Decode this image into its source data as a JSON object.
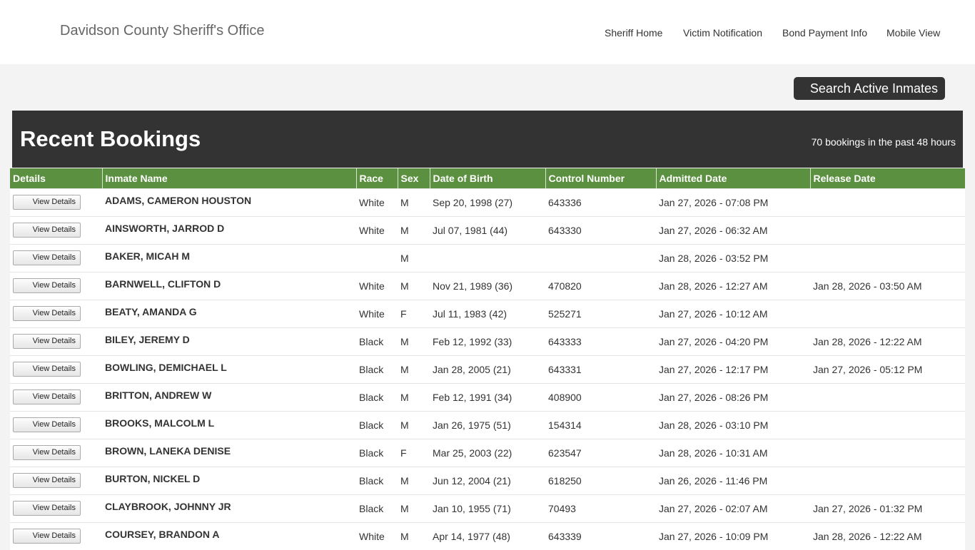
{
  "header": {
    "brand": "Davidson County Sheriff's Office",
    "nav": [
      "Sheriff Home",
      "Victim Notification",
      "Bond Payment Info",
      "Mobile View"
    ]
  },
  "search_button": "Search Active Inmates",
  "panel": {
    "title": "Recent Bookings",
    "count_text": "70 bookings in the past 48 hours"
  },
  "table": {
    "columns": [
      "Details",
      "Inmate Name",
      "Race",
      "Sex",
      "Date of Birth",
      "Control Number",
      "Admitted Date",
      "Release Date"
    ],
    "button_label": "View Details",
    "rows": [
      [
        "ADAMS, CAMERON  HOUSTON",
        "White",
        "M",
        "Sep 20, 1998 (27)",
        "643336",
        "Jan 27, 2026 - 07:08 PM",
        ""
      ],
      [
        "AINSWORTH, JARROD  D",
        "White",
        "M",
        "Jul 07, 1981 (44)",
        "643330",
        "Jan 27, 2026 - 06:32 AM",
        ""
      ],
      [
        "BAKER, MICAH  M",
        "",
        "M",
        "",
        "",
        "Jan 28, 2026 - 03:52 PM",
        ""
      ],
      [
        "BARNWELL, CLIFTON  D",
        "White",
        "M",
        "Nov 21, 1989 (36)",
        "470820",
        "Jan 28, 2026 - 12:27 AM",
        "Jan 28, 2026 - 03:50 AM"
      ],
      [
        "BEATY, AMANDA  G",
        "White",
        "F",
        "Jul 11, 1983 (42)",
        "525271",
        "Jan 27, 2026 - 10:12 AM",
        ""
      ],
      [
        "BILEY, JEREMY  D",
        "Black",
        "M",
        "Feb 12, 1992 (33)",
        "643333",
        "Jan 27, 2026 - 04:20 PM",
        "Jan 28, 2026 - 12:22 AM"
      ],
      [
        "BOWLING, DEMICHAEL  L",
        "Black",
        "M",
        "Jan 28, 2005 (21)",
        "643331",
        "Jan 27, 2026 - 12:17 PM",
        "Jan 27, 2026 - 05:12 PM"
      ],
      [
        "BRITTON, ANDREW  W",
        "Black",
        "M",
        "Feb 12, 1991 (34)",
        "408900",
        "Jan 27, 2026 - 08:26 PM",
        ""
      ],
      [
        "BROOKS, MALCOLM  L",
        "Black",
        "M",
        "Jan 26, 1975 (51)",
        "154314",
        "Jan 28, 2026 - 03:10 PM",
        ""
      ],
      [
        "BROWN, LANEKA  DENISE",
        "Black",
        "F",
        "Mar 25, 2003 (22)",
        "623547",
        "Jan 28, 2026 - 10:31 AM",
        ""
      ],
      [
        "BURTON, NICKEL  D",
        "Black",
        "M",
        "Jun 12, 2004 (21)",
        "618250",
        "Jan 26, 2026 - 11:46 PM",
        ""
      ],
      [
        "CLAYBROOK, JOHNNY  JR",
        "Black",
        "M",
        "Jan 10, 1955 (71)",
        "70493",
        "Jan 27, 2026 - 02:07 AM",
        "Jan 27, 2026 - 01:32 PM"
      ],
      [
        "COURSEY, BRANDON  A",
        "White",
        "M",
        "Apr 14, 1977 (48)",
        "643339",
        "Jan 27, 2026 - 10:09 PM",
        "Jan 28, 2026 - 12:22 AM"
      ]
    ]
  },
  "colors": {
    "header_bar": "#333333",
    "table_header": "#5b9040",
    "page_bg": "#f3f3f3"
  }
}
